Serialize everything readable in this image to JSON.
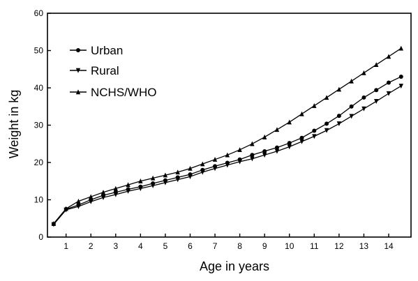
{
  "chart_data": {
    "type": "line",
    "xlabel": "Age in years",
    "ylabel": "Weight in kg",
    "xlim": [
      0.25,
      14.9
    ],
    "ylim": [
      0,
      60
    ],
    "x_ticks": [
      1,
      2,
      3,
      4,
      5,
      6,
      7,
      8,
      9,
      10,
      11,
      12,
      13,
      14
    ],
    "y_ticks": [
      0,
      10,
      20,
      30,
      40,
      50,
      60
    ],
    "grid": false,
    "legend_position": "top-left",
    "x": [
      0.5,
      1,
      1.5,
      2,
      2.5,
      3,
      3.5,
      4,
      4.5,
      5,
      5.5,
      6,
      6.5,
      7,
      7.5,
      8,
      8.5,
      9,
      9.5,
      10,
      10.5,
      11,
      11.5,
      12,
      12.5,
      13,
      13.5,
      14,
      14.5
    ],
    "series": [
      {
        "name": "Urban",
        "marker": "circle",
        "values": [
          3.5,
          7.5,
          8.6,
          10.0,
          11.2,
          12.0,
          12.8,
          13.5,
          14.4,
          15.2,
          16.0,
          16.8,
          18.0,
          19.0,
          19.9,
          20.8,
          22.0,
          23.0,
          24.0,
          25.2,
          26.6,
          28.5,
          30.4,
          32.5,
          35.0,
          37.4,
          39.4,
          41.4,
          43.0
        ]
      },
      {
        "name": "Rural",
        "marker": "triangle-down",
        "values": [
          3.4,
          7.3,
          8.2,
          9.5,
          10.6,
          11.4,
          12.3,
          13.0,
          13.8,
          14.6,
          15.4,
          16.2,
          17.4,
          18.4,
          19.3,
          20.2,
          21.0,
          22.0,
          23.0,
          24.2,
          25.6,
          27.0,
          28.6,
          30.4,
          32.4,
          34.4,
          36.4,
          38.5,
          40.5
        ]
      },
      {
        "name": "NCHS/WHO",
        "marker": "triangle-up",
        "values": [
          3.6,
          7.6,
          9.6,
          10.8,
          12.0,
          13.0,
          14.0,
          15.0,
          15.8,
          16.6,
          17.4,
          18.4,
          19.6,
          20.8,
          22.0,
          23.4,
          25.0,
          26.8,
          28.8,
          30.8,
          33.0,
          35.2,
          37.4,
          39.6,
          41.8,
          44.0,
          46.2,
          48.4,
          50.6
        ]
      }
    ]
  }
}
